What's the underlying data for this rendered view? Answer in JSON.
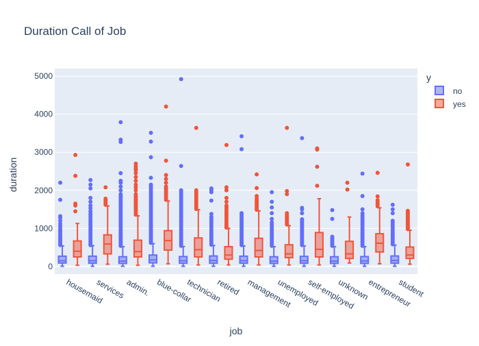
{
  "chart_data": {
    "type": "box",
    "title": "Duration Call of Job",
    "xlabel": "job",
    "ylabel": "duration",
    "ylim": [
      -200,
      5200
    ],
    "yticks": [
      0,
      1000,
      2000,
      3000,
      4000,
      5000
    ],
    "grid": true,
    "legend": {
      "title": "y",
      "placement": "top-right",
      "entries": [
        "no",
        "yes"
      ]
    },
    "colors": {
      "no": "#636efa",
      "yes": "#ef553b",
      "plot_bg": "#e5ecf6"
    },
    "categories": [
      "housemaid",
      "services",
      "admin.",
      "blue-collar",
      "technician",
      "retired",
      "management",
      "unemployed",
      "self-employed",
      "unknown",
      "entrepreneur",
      "student"
    ],
    "series": [
      {
        "name": "no",
        "boxes": [
          {
            "q1": 90,
            "median": 150,
            "q3": 270,
            "low": 5,
            "high": 540,
            "outliers": [
              560,
              600,
              640,
              680,
              720,
              760,
              800,
              850,
              900,
              950,
              1000,
              1060,
              1120,
              1200,
              1280,
              1320,
              1750,
              2200
            ]
          },
          {
            "q1": 85,
            "median": 150,
            "q3": 270,
            "low": 5,
            "high": 545,
            "outliers": [
              560,
              600,
              650,
              700,
              750,
              800,
              850,
              900,
              950,
              1000,
              1050,
              1100,
              1150,
              1200,
              1260,
              1320,
              1380,
              1450,
              1530,
              1600,
              1700,
              1800,
              2050,
              2150,
              2270
            ]
          },
          {
            "q1": 80,
            "median": 140,
            "q3": 255,
            "low": 5,
            "high": 520,
            "outliers": [
              540,
              580,
              620,
              660,
              700,
              740,
              780,
              820,
              860,
              900,
              950,
              1000,
              1050,
              1100,
              1150,
              1200,
              1250,
              1300,
              1350,
              1400,
              1450,
              1500,
              1550,
              1600,
              1650,
              1700,
              1750,
              1800,
              1850,
              1900,
              2000,
              2100,
              2200,
              2250,
              2450,
              3270,
              3330,
              3790
            ]
          },
          {
            "q1": 95,
            "median": 170,
            "q3": 300,
            "low": 5,
            "high": 600,
            "outliers": [
              620,
              660,
              700,
              740,
              780,
              820,
              860,
              900,
              940,
              980,
              1020,
              1060,
              1100,
              1150,
              1200,
              1250,
              1300,
              1350,
              1400,
              1450,
              1500,
              1550,
              1600,
              1650,
              1700,
              1750,
              1800,
              1850,
              1900,
              1950,
              2000,
              2050,
              2100,
              2150,
              2330,
              2870,
              3280,
              3510
            ]
          },
          {
            "q1": 85,
            "median": 150,
            "q3": 260,
            "low": 5,
            "high": 525,
            "outliers": [
              540,
              580,
              620,
              660,
              700,
              740,
              780,
              820,
              860,
              900,
              950,
              1000,
              1050,
              1100,
              1150,
              1200,
              1250,
              1300,
              1350,
              1400,
              1450,
              1500,
              1550,
              1600,
              1650,
              1700,
              1750,
              1800,
              1850,
              1900,
              1950,
              2000,
              2640,
              4920
            ]
          },
          {
            "q1": 85,
            "median": 155,
            "q3": 275,
            "low": 5,
            "high": 550,
            "outliers": [
              570,
              610,
              650,
              690,
              730,
              770,
              810,
              850,
              900,
              950,
              1000,
              1050,
              1100,
              1150,
              1200,
              1250,
              1300,
              1380,
              1730,
              1950,
              2000,
              2050
            ]
          },
          {
            "q1": 85,
            "median": 150,
            "q3": 270,
            "low": 5,
            "high": 540,
            "outliers": [
              560,
              600,
              640,
              680,
              720,
              760,
              800,
              840,
              880,
              920,
              960,
              1000,
              1040,
              1080,
              1120,
              1160,
              1200,
              1250,
              1300,
              1350,
              1400,
              3080,
              3420
            ]
          },
          {
            "q1": 80,
            "median": 140,
            "q3": 255,
            "low": 5,
            "high": 520,
            "outliers": [
              540,
              580,
              620,
              660,
              700,
              740,
              780,
              820,
              860,
              900,
              950,
              1000,
              1050,
              1100,
              1160,
              1250,
              1400,
              1550,
              1700,
              1950
            ]
          },
          {
            "q1": 85,
            "median": 150,
            "q3": 265,
            "low": 5,
            "high": 540,
            "outliers": [
              560,
              600,
              640,
              680,
              720,
              760,
              800,
              840,
              880,
              920,
              960,
              1000,
              1040,
              1080,
              1120,
              1160,
              1200,
              1240,
              1400,
              1500,
              1540,
              3370
            ]
          },
          {
            "q1": 80,
            "median": 140,
            "q3": 255,
            "low": 5,
            "high": 520,
            "outliers": [
              540,
              580,
              620,
              660,
              700,
              740,
              780,
              1250,
              1480
            ]
          },
          {
            "q1": 80,
            "median": 145,
            "q3": 260,
            "low": 5,
            "high": 520,
            "outliers": [
              540,
              580,
              620,
              660,
              700,
              740,
              780,
              820,
              860,
              900,
              950,
              1000,
              1050,
              1100,
              1150,
              1200,
              1250,
              1300,
              1350,
              1400,
              1500,
              1850,
              2440
            ]
          },
          {
            "q1": 85,
            "median": 155,
            "q3": 275,
            "low": 5,
            "high": 560,
            "outliers": [
              580,
              620,
              660,
              700,
              740,
              780,
              820,
              860,
              900,
              950,
              1000,
              1050,
              1100,
              1150,
              1200,
              1400,
              1500,
              1620
            ]
          }
        ]
      },
      {
        "name": "yes",
        "boxes": [
          {
            "q1": 250,
            "median": 400,
            "q3": 670,
            "low": 30,
            "high": 1130,
            "outliers": [
              1450,
              1600,
              1650,
              2380,
              2930
            ]
          },
          {
            "q1": 330,
            "median": 590,
            "q3": 830,
            "low": 60,
            "high": 1590,
            "outliers": [
              1620,
              1660,
              1700,
              1740,
              1780,
              2080
            ]
          },
          {
            "q1": 250,
            "median": 390,
            "q3": 690,
            "low": 30,
            "high": 1330,
            "outliers": [
              1360,
              1400,
              1440,
              1480,
              1520,
              1560,
              1600,
              1640,
              1680,
              1720,
              1760,
              1800,
              1850,
              1900,
              2000,
              2080,
              2150,
              2250,
              2350,
              2450,
              2530,
              2580,
              2630,
              2700
            ]
          },
          {
            "q1": 430,
            "median": 680,
            "q3": 940,
            "low": 70,
            "high": 1720,
            "outliers": [
              1750,
              1800,
              1850,
              1900,
              1950,
              2000,
              2050,
              2100,
              2200,
              2300,
              2400,
              2780,
              4200
            ]
          },
          {
            "q1": 250,
            "median": 440,
            "q3": 750,
            "low": 40,
            "high": 1490,
            "outliers": [
              1510,
              1550,
              1590,
              1630,
              1670,
              1710,
              1750,
              1800,
              1850,
              1900,
              1950,
              2000,
              3640
            ]
          },
          {
            "q1": 190,
            "median": 300,
            "q3": 520,
            "low": 40,
            "high": 1000,
            "outliers": [
              1020,
              1060,
              1100,
              1150,
              1200,
              1250,
              1300,
              1350,
              1400,
              1450,
              1500,
              1550,
              1600,
              1700,
              1800,
              2000,
              2080,
              3190
            ]
          },
          {
            "q1": 250,
            "median": 420,
            "q3": 740,
            "low": 40,
            "high": 1460,
            "outliers": [
              1490,
              1530,
              1570,
              1610,
              1650,
              1690,
              1730,
              1780,
              1850,
              2060,
              2420
            ]
          },
          {
            "q1": 230,
            "median": 330,
            "q3": 570,
            "low": 40,
            "high": 1070,
            "outliers": [
              1100,
              1140,
              1180,
              1220,
              1260,
              1300,
              1340,
              1400,
              1900,
              1980,
              3640
            ]
          },
          {
            "q1": 250,
            "median": 450,
            "q3": 890,
            "low": 40,
            "high": 1780,
            "outliers": [
              2120,
              2620,
              3070,
              3100
            ]
          },
          {
            "q1": 210,
            "median": 330,
            "q3": 660,
            "low": 90,
            "high": 1300,
            "outliers": [
              2020,
              2200
            ]
          },
          {
            "q1": 380,
            "median": 610,
            "q3": 860,
            "low": 70,
            "high": 1540,
            "outliers": [
              1580,
              1620,
              1660,
              1700,
              1740,
              1840,
              2460
            ]
          },
          {
            "q1": 210,
            "median": 300,
            "q3": 510,
            "low": 60,
            "high": 950,
            "outliers": [
              980,
              1020,
              1060,
              1100,
              1140,
              1180,
              1220,
              1260,
              1300,
              1340,
              1380,
              1420,
              1460,
              2680
            ]
          }
        ]
      }
    ]
  }
}
